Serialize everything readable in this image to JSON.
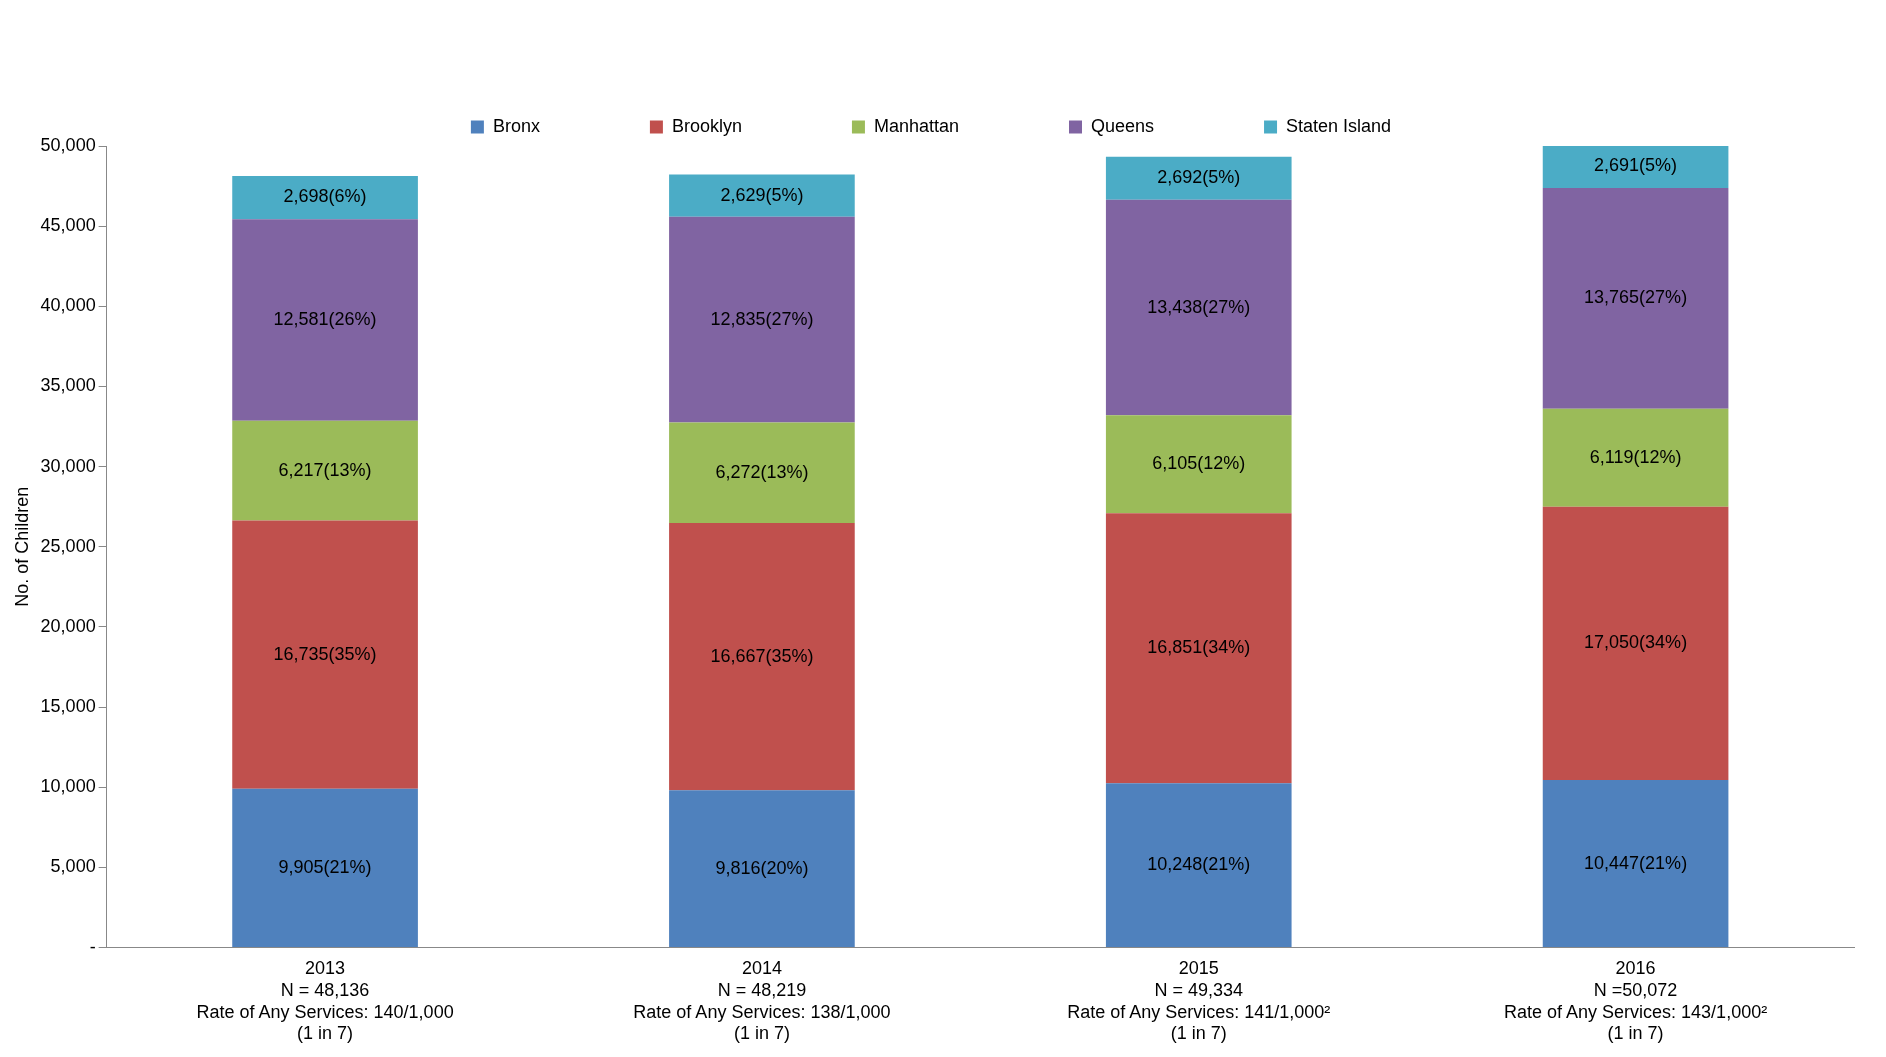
{
  "chart_data": {
    "type": "bar",
    "stacked": true,
    "ylabel": "No. of Children",
    "legend": "top",
    "grid": false,
    "categories": [
      "2013\nN = 48,136\nRate of Any Services: 140/1,000\n(1 in 7)",
      "2014\nN = 48,219\nRate of Any Services: 138/1,000\n(1 in 7)",
      "2015\nN = 49,334\nRate of Any Services: 141/1,000²\n(1 in 7)",
      "2016\nN =50,072\nRate of Any Services: 143/1,000²\n(1 in 7)"
    ],
    "ylim": [
      0,
      50000
    ],
    "yticks": [
      {
        "value": 0,
        "label": "-"
      },
      {
        "value": 5000,
        "label": "5,000"
      },
      {
        "value": 10000,
        "label": "10,000"
      },
      {
        "value": 15000,
        "label": "15,000"
      },
      {
        "value": 20000,
        "label": "20,000"
      },
      {
        "value": 25000,
        "label": "25,000"
      },
      {
        "value": 30000,
        "label": "30,000"
      },
      {
        "value": 35000,
        "label": "35,000"
      },
      {
        "value": 40000,
        "label": "40,000"
      },
      {
        "value": 45000,
        "label": "45,000"
      },
      {
        "value": 50000,
        "label": "50,000"
      }
    ],
    "series": [
      {
        "name": "Bronx",
        "color": "#4f81bd",
        "values": [
          9905,
          9816,
          10248,
          10447
        ],
        "value_labels": [
          "9,905(21%)",
          "9,816(20%)",
          "10,248(21%)",
          "10,447(21%)"
        ]
      },
      {
        "name": "Brooklyn",
        "color": "#c0504d",
        "values": [
          16735,
          16667,
          16851,
          17050
        ],
        "value_labels": [
          "16,735(35%)",
          "16,667(35%)",
          "16,851(34%)",
          "17,050(34%)"
        ]
      },
      {
        "name": "Manhattan",
        "color": "#9bbb59",
        "values": [
          6217,
          6272,
          6105,
          6119
        ],
        "value_labels": [
          "6,217(13%)",
          "6,272(13%)",
          "6,105(12%)",
          "6,119(12%)"
        ]
      },
      {
        "name": "Queens",
        "color": "#8064a2",
        "values": [
          12581,
          12835,
          13438,
          13765
        ],
        "value_labels": [
          "12,581(26%)",
          "12,835(27%)",
          "13,438(27%)",
          "13,765(27%)"
        ]
      },
      {
        "name": "Staten Island",
        "color": "#4bacc6",
        "values": [
          2698,
          2629,
          2692,
          2691
        ],
        "value_labels": [
          "2,698(6%)",
          "2,629(5%)",
          "2,692(5%)",
          "2,691(5%)"
        ]
      }
    ]
  }
}
